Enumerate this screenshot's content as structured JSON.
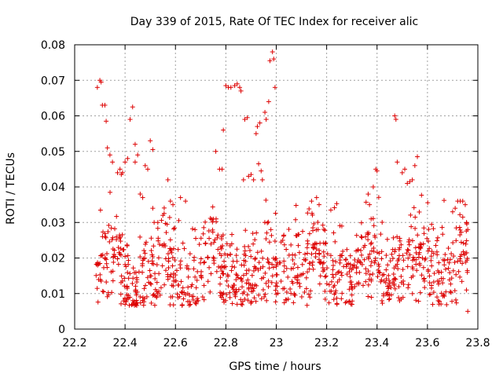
{
  "chart_data": {
    "type": "scatter",
    "title": "Day 339 of 2015, Rate Of TEC Index for receiver alic",
    "xlabel": "GPS time / hours",
    "ylabel": "ROTI / TECUs",
    "xlim": [
      22.2,
      23.8
    ],
    "ylim": [
      0,
      0.08
    ],
    "xticks": [
      22.2,
      22.4,
      22.6,
      22.8,
      23.0,
      23.2,
      23.4,
      23.6,
      23.8
    ],
    "xtick_labels": [
      "22.2",
      "22.4",
      "22.6",
      "22.8",
      "23",
      "23.2",
      "23.4",
      "23.6",
      "23.8"
    ],
    "yticks": [
      0,
      0.01,
      0.02,
      0.03,
      0.04,
      0.05,
      0.06,
      0.07,
      0.08
    ],
    "ytick_labels": [
      "0",
      "0.01",
      "0.02",
      "0.03",
      "0.04",
      "0.05",
      "0.06",
      "0.07",
      "0.08"
    ],
    "grid": true,
    "marker": "+",
    "marker_color": "#dd0000",
    "series": [
      {
        "name": "ROTI",
        "points": [
          [
            22.29,
            0.068
          ],
          [
            22.3,
            0.07
          ],
          [
            22.305,
            0.0695
          ],
          [
            22.31,
            0.063
          ],
          [
            22.32,
            0.063
          ],
          [
            22.325,
            0.0585
          ],
          [
            22.33,
            0.051
          ],
          [
            22.34,
            0.049
          ],
          [
            22.35,
            0.047
          ],
          [
            22.37,
            0.044
          ],
          [
            22.38,
            0.045
          ],
          [
            22.385,
            0.0435
          ],
          [
            22.39,
            0.044
          ],
          [
            22.4,
            0.047
          ],
          [
            22.41,
            0.048
          ],
          [
            22.42,
            0.059
          ],
          [
            22.43,
            0.0625
          ],
          [
            22.44,
            0.052
          ],
          [
            22.44,
            0.047
          ],
          [
            22.45,
            0.049
          ],
          [
            22.46,
            0.038
          ],
          [
            22.47,
            0.037
          ],
          [
            22.48,
            0.046
          ],
          [
            22.49,
            0.045
          ],
          [
            22.5,
            0.053
          ],
          [
            22.51,
            0.0505
          ],
          [
            22.51,
            0.034
          ],
          [
            22.53,
            0.03
          ],
          [
            22.55,
            0.032
          ],
          [
            22.57,
            0.042
          ],
          [
            22.58,
            0.036
          ],
          [
            22.59,
            0.035
          ],
          [
            22.62,
            0.037
          ],
          [
            22.64,
            0.036
          ],
          [
            22.76,
            0.05
          ],
          [
            22.775,
            0.045
          ],
          [
            22.785,
            0.045
          ],
          [
            22.79,
            0.056
          ],
          [
            22.8,
            0.0685
          ],
          [
            22.81,
            0.068
          ],
          [
            22.82,
            0.068
          ],
          [
            22.835,
            0.0685
          ],
          [
            22.845,
            0.069
          ],
          [
            22.855,
            0.068
          ],
          [
            22.86,
            0.067
          ],
          [
            22.87,
            0.042
          ],
          [
            22.875,
            0.059
          ],
          [
            22.885,
            0.0595
          ],
          [
            22.89,
            0.043
          ],
          [
            22.9,
            0.0435
          ],
          [
            22.91,
            0.042
          ],
          [
            22.92,
            0.055
          ],
          [
            22.925,
            0.057
          ],
          [
            22.93,
            0.0465
          ],
          [
            22.935,
            0.058
          ],
          [
            22.94,
            0.0445
          ],
          [
            22.945,
            0.042
          ],
          [
            22.955,
            0.061
          ],
          [
            22.96,
            0.059
          ],
          [
            22.97,
            0.064
          ],
          [
            22.975,
            0.0755
          ],
          [
            22.985,
            0.078
          ],
          [
            22.99,
            0.076
          ],
          [
            22.995,
            0.068
          ],
          [
            23.14,
            0.036
          ],
          [
            23.16,
            0.037
          ],
          [
            23.17,
            0.035
          ],
          [
            23.37,
            0.035
          ],
          [
            23.385,
            0.04
          ],
          [
            23.395,
            0.045
          ],
          [
            23.4,
            0.0445
          ],
          [
            23.47,
            0.06
          ],
          [
            23.475,
            0.059
          ],
          [
            23.48,
            0.047
          ],
          [
            23.5,
            0.044
          ],
          [
            23.51,
            0.045
          ],
          [
            23.52,
            0.041
          ],
          [
            23.53,
            0.0415
          ],
          [
            23.54,
            0.042
          ],
          [
            23.55,
            0.046
          ],
          [
            23.56,
            0.0485
          ],
          [
            23.67,
            0.021
          ],
          [
            23.72,
            0.036
          ],
          [
            23.73,
            0.036
          ],
          [
            23.74,
            0.036
          ],
          [
            23.75,
            0.035
          ],
          [
            23.755,
            0.03
          ],
          [
            23.76,
            0.028
          ],
          [
            23.76,
            0.005
          ],
          [
            23.7,
            0.033
          ],
          [
            23.71,
            0.034
          ],
          [
            23.66,
            0.013
          ],
          [
            23.57,
            0.018
          ],
          [
            23.58,
            0.02
          ]
        ]
      }
    ]
  }
}
